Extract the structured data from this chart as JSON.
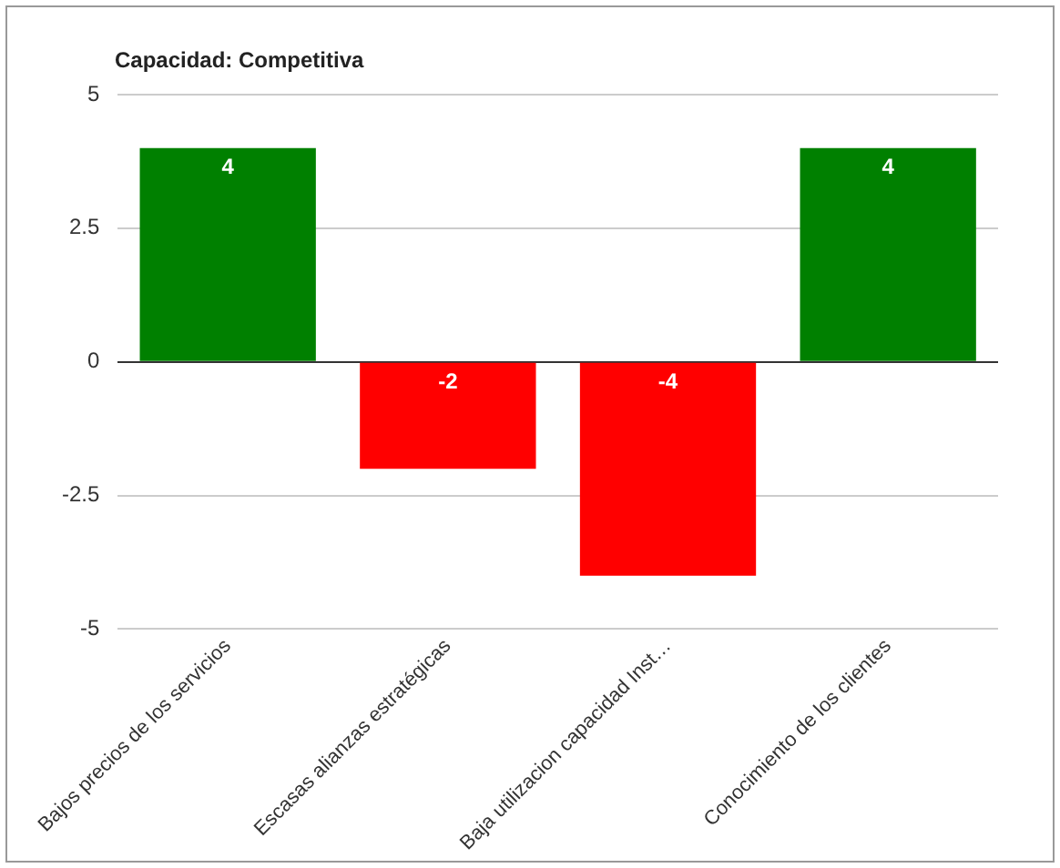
{
  "chart_data": {
    "type": "bar",
    "title": "Capacidad: Competitiva",
    "categories": [
      "Bajos precios de los servicios",
      "Escasas alianzas estratégicas",
      "Baja utilizacion capacidad Inst…",
      "Conocimiento de los clientes"
    ],
    "values": [
      4,
      -2,
      -4,
      4
    ],
    "colors": [
      "#008000",
      "#ff0000",
      "#ff0000",
      "#008000"
    ],
    "ylim": [
      -5,
      5
    ],
    "yticks": [
      -5,
      -2.5,
      0,
      2.5,
      5
    ],
    "grid": "y",
    "legend": false,
    "data_labels": true
  }
}
